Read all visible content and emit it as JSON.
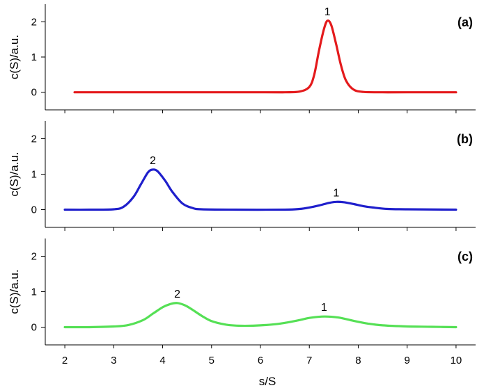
{
  "chart_data": [
    {
      "type": "line",
      "panel_label": "(a)",
      "ylabel": "c(S)/a.u.",
      "xlabel": "",
      "xlim": [
        1.6,
        10.4
      ],
      "ylim": [
        -0.5,
        2.5
      ],
      "yticks": [
        0,
        1,
        2
      ],
      "color": "#e41a1c",
      "series": [
        {
          "x": [
            2.2,
            3,
            4,
            5,
            6,
            6.5,
            6.8,
            7.0,
            7.1,
            7.2,
            7.3,
            7.37,
            7.45,
            7.55,
            7.65,
            7.75,
            7.9,
            8.1,
            8.5,
            9,
            10
          ],
          "y": [
            0,
            0,
            0,
            0,
            0,
            0,
            0.02,
            0.15,
            0.5,
            1.2,
            1.8,
            2.03,
            1.9,
            1.35,
            0.75,
            0.33,
            0.08,
            0.01,
            0,
            0,
            0
          ]
        }
      ],
      "annotations": [
        {
          "text": "1",
          "x": 7.37,
          "y": 2.03
        }
      ]
    },
    {
      "type": "line",
      "panel_label": "(b)",
      "ylabel": "c(S)/a.u.",
      "xlabel": "",
      "xlim": [
        1.6,
        10.4
      ],
      "ylim": [
        -0.5,
        2.5
      ],
      "yticks": [
        0,
        1,
        2
      ],
      "color": "#1f1fcc",
      "series": [
        {
          "x": [
            2.0,
            2.5,
            3.0,
            3.2,
            3.4,
            3.55,
            3.7,
            3.8,
            3.9,
            4.05,
            4.2,
            4.4,
            4.6,
            4.8,
            5.5,
            6.5,
            6.8,
            7.0,
            7.2,
            7.4,
            7.55,
            7.7,
            7.9,
            8.1,
            8.3,
            8.6,
            9.0,
            10.0
          ],
          "y": [
            0,
            0,
            0.01,
            0.08,
            0.35,
            0.7,
            1.05,
            1.13,
            1.08,
            0.82,
            0.5,
            0.18,
            0.05,
            0.01,
            0,
            0,
            0.02,
            0.06,
            0.12,
            0.19,
            0.22,
            0.21,
            0.16,
            0.1,
            0.06,
            0.02,
            0.01,
            0
          ]
        }
      ],
      "annotations": [
        {
          "text": "2",
          "x": 3.8,
          "y": 1.13
        },
        {
          "text": "1",
          "x": 7.55,
          "y": 0.22
        }
      ]
    },
    {
      "type": "line",
      "panel_label": "(c)",
      "ylabel": "c(S)/a.u.",
      "xlabel": "s/S",
      "xlim": [
        1.6,
        10.4
      ],
      "ylim": [
        -0.5,
        2.5
      ],
      "yticks": [
        0,
        1,
        2
      ],
      "xticks": [
        2,
        3,
        4,
        5,
        6,
        7,
        8,
        9,
        10
      ],
      "color": "#55e055",
      "series": [
        {
          "x": [
            2.0,
            2.5,
            3.0,
            3.3,
            3.6,
            3.8,
            4.0,
            4.15,
            4.3,
            4.45,
            4.6,
            4.8,
            5.0,
            5.3,
            5.6,
            6.0,
            6.4,
            6.8,
            7.0,
            7.3,
            7.6,
            7.9,
            8.2,
            8.5,
            9.0,
            9.5,
            10.0
          ],
          "y": [
            0,
            0,
            0.02,
            0.06,
            0.2,
            0.38,
            0.56,
            0.65,
            0.68,
            0.62,
            0.5,
            0.32,
            0.17,
            0.07,
            0.04,
            0.05,
            0.1,
            0.2,
            0.26,
            0.3,
            0.27,
            0.18,
            0.1,
            0.05,
            0.02,
            0.01,
            0
          ]
        }
      ],
      "annotations": [
        {
          "text": "2",
          "x": 4.3,
          "y": 0.68
        },
        {
          "text": "1",
          "x": 7.3,
          "y": 0.3
        }
      ]
    }
  ]
}
